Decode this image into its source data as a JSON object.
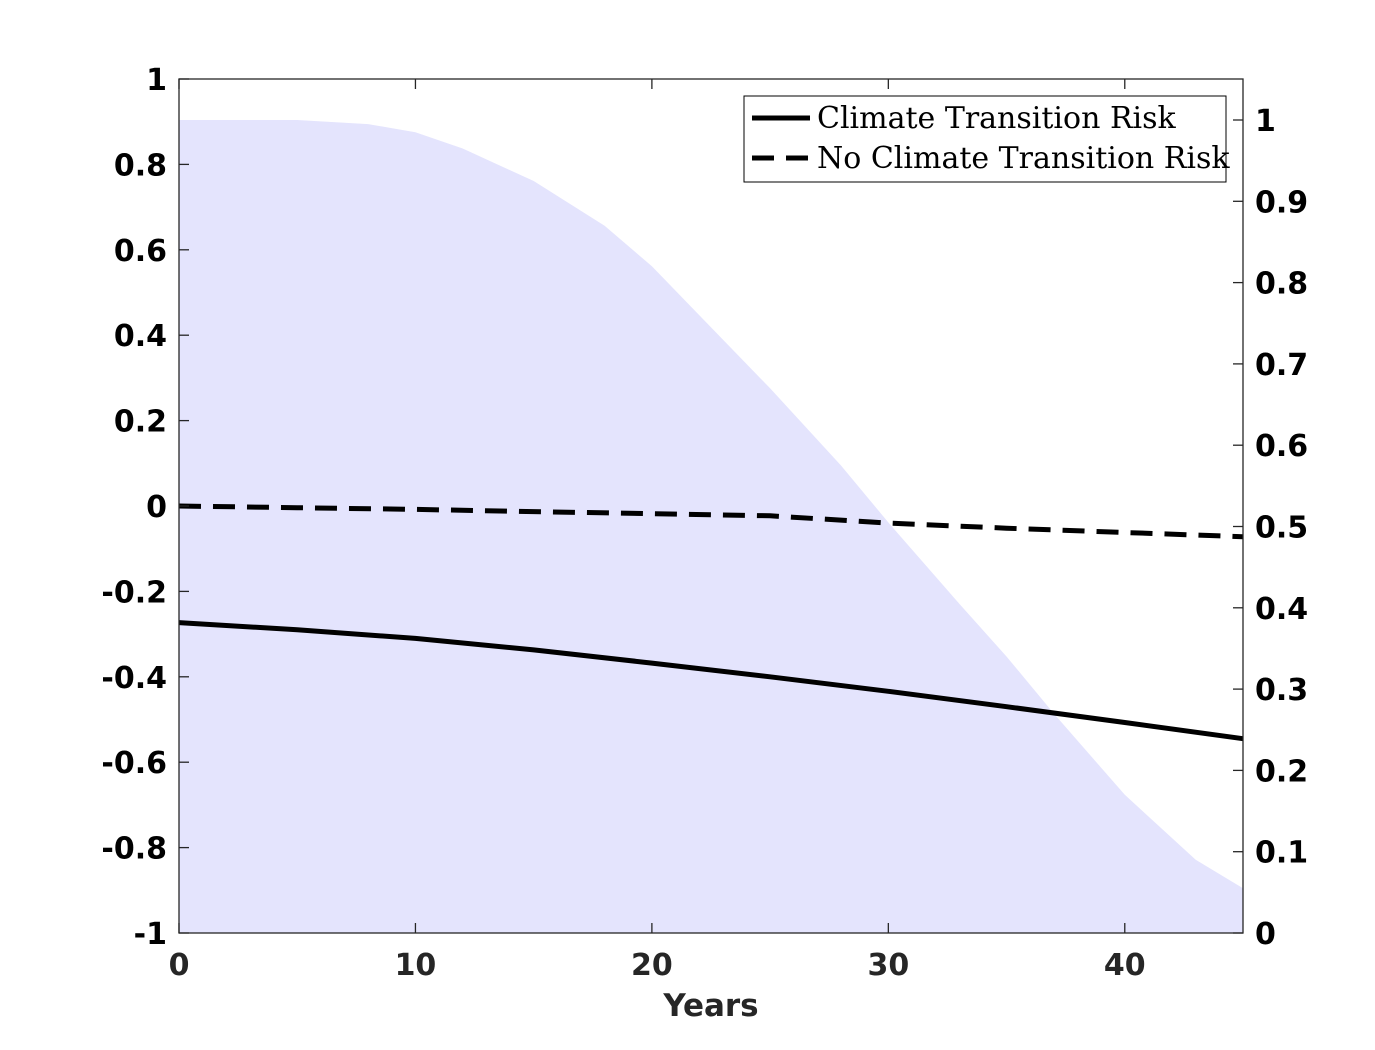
{
  "chart_data": {
    "type": "line",
    "xlabel": "Years",
    "ylabel": "",
    "ylabel_right": "",
    "xlim": [
      0,
      45
    ],
    "ylim": [
      -1,
      1
    ],
    "ylim_right": [
      0,
      1
    ],
    "x_ticks": [
      "0",
      "10",
      "20",
      "30",
      "40"
    ],
    "y_ticks_left": [
      "1",
      "0.8",
      "0.6",
      "0.4",
      "0.2",
      "0",
      "-0.2",
      "-0.4",
      "-0.6",
      "-0.8",
      "-1"
    ],
    "y_ticks_right": [
      "1",
      "0.9",
      "0.8",
      "0.7",
      "0.6",
      "0.5",
      "0.4",
      "0.3",
      "0.2",
      "0.1",
      "0"
    ],
    "grid": false,
    "legend_position": "top-right",
    "series": [
      {
        "name": "Climate Transition Risk",
        "axis": "left",
        "style": "solid",
        "color": "#000000",
        "x": [
          0,
          5,
          10,
          15,
          20,
          25,
          30,
          35,
          40,
          45
        ],
        "y": [
          -0.273,
          -0.29,
          -0.31,
          -0.337,
          -0.368,
          -0.4,
          -0.434,
          -0.47,
          -0.507,
          -0.545
        ]
      },
      {
        "name": "No Climate Transition Risk",
        "axis": "left",
        "style": "dashed",
        "color": "#000000",
        "x": [
          0,
          5,
          10,
          15,
          20,
          25,
          30,
          35,
          40,
          45
        ],
        "y": [
          0.0,
          -0.004,
          -0.008,
          -0.013,
          -0.018,
          -0.023,
          -0.04,
          -0.052,
          -0.062,
          -0.072
        ]
      },
      {
        "name": "",
        "axis": "right",
        "style": "area",
        "color": "#e4e4fd",
        "x": [
          0,
          5,
          8,
          10,
          12,
          15,
          18,
          20,
          22,
          25,
          28,
          30,
          33,
          35,
          37,
          40,
          43,
          45
        ],
        "y": [
          1.0,
          1.0,
          0.995,
          0.985,
          0.965,
          0.925,
          0.87,
          0.82,
          0.76,
          0.67,
          0.575,
          0.505,
          0.405,
          0.34,
          0.27,
          0.17,
          0.09,
          0.055
        ]
      }
    ]
  }
}
